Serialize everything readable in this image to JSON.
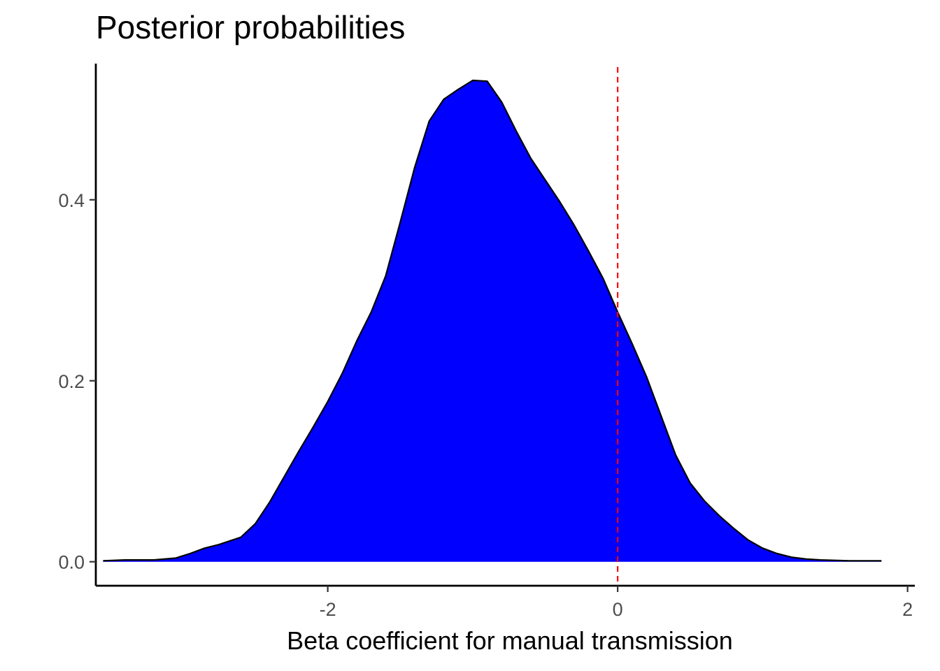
{
  "chart_data": {
    "type": "area",
    "title": "Posterior probabilities",
    "xlabel": "Beta coefficient for manual transmission",
    "ylabel": "",
    "xlim": [
      -3.6,
      2.05
    ],
    "ylim": [
      -0.0265,
      0.5505
    ],
    "x_ticks": [
      {
        "value": -2,
        "label": "-2"
      },
      {
        "value": 0,
        "label": "0"
      },
      {
        "value": 2,
        "label": "2"
      }
    ],
    "y_ticks": [
      {
        "value": 0.0,
        "label": "0.0"
      },
      {
        "value": 0.2,
        "label": "0.2"
      },
      {
        "value": 0.4,
        "label": "0.4"
      }
    ],
    "grid": false,
    "legend": "none",
    "fill_color": "#0000ff",
    "line_color": "#000000",
    "reference_line": {
      "x": 0,
      "color": "#ff0000",
      "style": "dashed"
    },
    "series": [
      {
        "x": [
          -3.55,
          -3.4,
          -3.2,
          -3.05,
          -2.95,
          -2.85,
          -2.75,
          -2.6,
          -2.5,
          -2.4,
          -2.3,
          -2.2,
          -2.1,
          -2.0,
          -1.9,
          -1.8,
          -1.7,
          -1.6,
          -1.5,
          -1.4,
          -1.3,
          -1.2,
          -1.1,
          -1.0,
          -0.9,
          -0.8,
          -0.7,
          -0.6,
          -0.5,
          -0.4,
          -0.3,
          -0.2,
          -0.1,
          0.0,
          0.1,
          0.2,
          0.3,
          0.4,
          0.5,
          0.6,
          0.7,
          0.8,
          0.9,
          1.0,
          1.1,
          1.2,
          1.3,
          1.4,
          1.6,
          1.82
        ],
        "y": [
          0.001,
          0.002,
          0.002,
          0.004,
          0.009,
          0.015,
          0.019,
          0.027,
          0.042,
          0.066,
          0.094,
          0.122,
          0.149,
          0.177,
          0.208,
          0.244,
          0.276,
          0.316,
          0.375,
          0.436,
          0.487,
          0.511,
          0.522,
          0.532,
          0.531,
          0.508,
          0.476,
          0.446,
          0.422,
          0.398,
          0.372,
          0.343,
          0.313,
          0.276,
          0.241,
          0.204,
          0.161,
          0.118,
          0.087,
          0.067,
          0.051,
          0.037,
          0.024,
          0.015,
          0.009,
          0.005,
          0.003,
          0.002,
          0.001,
          0.001
        ]
      }
    ]
  }
}
